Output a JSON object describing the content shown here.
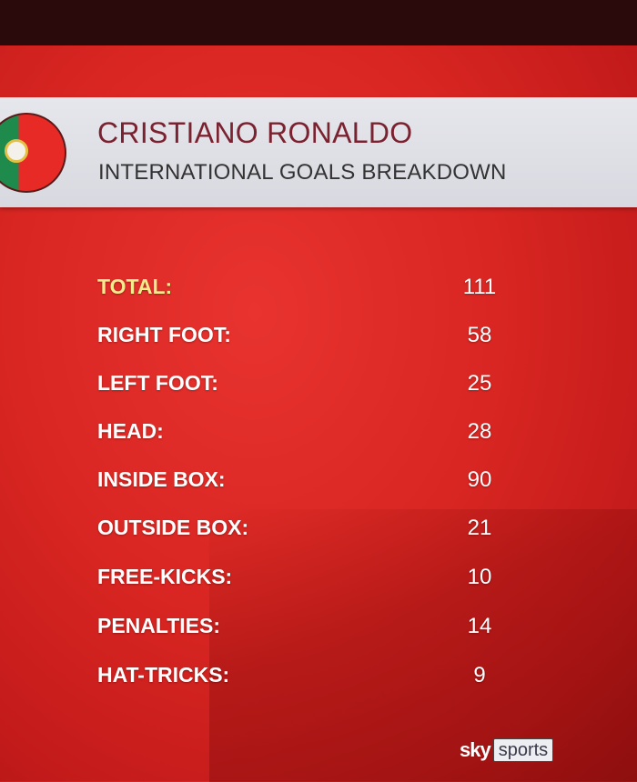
{
  "header": {
    "title": "CRISTIANO RONALDO",
    "subtitle": "INTERNATIONAL GOALS BREAKDOWN",
    "flag": "portugal-flag"
  },
  "stats": [
    {
      "label": "TOTAL:",
      "value": "111"
    },
    {
      "label": "RIGHT FOOT:",
      "value": "58"
    },
    {
      "label": "LEFT FOOT:",
      "value": "25"
    },
    {
      "label": "HEAD:",
      "value": "28"
    },
    {
      "label": "INSIDE BOX:",
      "value": "90"
    },
    {
      "label": "OUTSIDE BOX:",
      "value": "21"
    },
    {
      "label": "FREE-KICKS:",
      "value": "10"
    },
    {
      "label": "PENALTIES:",
      "value": "14"
    },
    {
      "label": "HAT-TRICKS:",
      "value": "9"
    }
  ],
  "logo": {
    "sky": "sky",
    "sports": "sports"
  },
  "colors": {
    "background": "#d92622",
    "title": "#7b2230",
    "total_label": "#f5ea8e"
  }
}
